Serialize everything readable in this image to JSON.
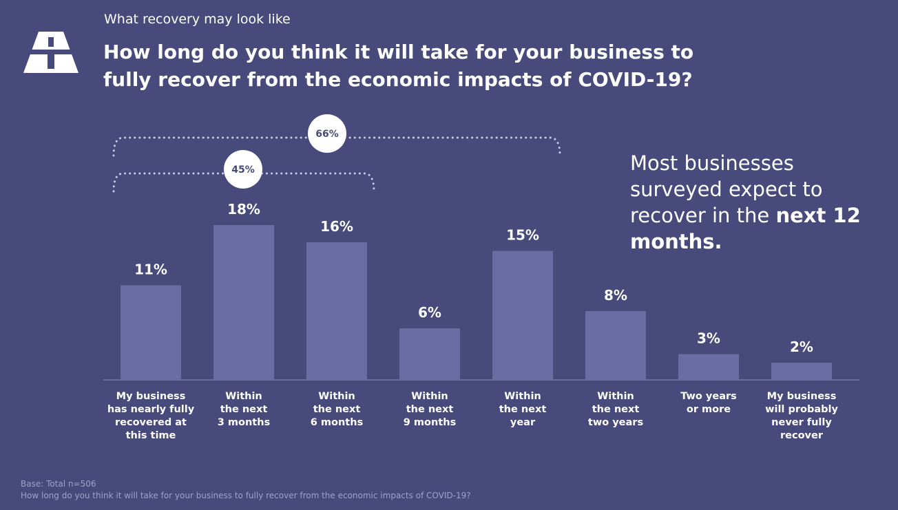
{
  "header": {
    "kicker": "What recovery may look like",
    "title": "How long do you think it will take for your business to fully recover from the economic impacts of COVID-19?",
    "logo_icon": "road-icon"
  },
  "callout": {
    "text_regular": "Most businesses surveyed expect to recover in the",
    "text_bold": "next 12 months."
  },
  "footnote": {
    "base": "Base: Total n=506",
    "question": "How long do you think it will take for your business to fully recover from the economic impacts of COVID-19?"
  },
  "colors": {
    "background": "#474a7a",
    "bar": "#6a6da3",
    "text": "#ffffff",
    "footnote": "#9fa2c9",
    "bracket": "#c9cbe8",
    "badge_text": "#474a7a"
  },
  "chart_data": {
    "type": "bar",
    "title": "",
    "xlabel": "",
    "ylabel": "",
    "ylim": [
      0,
      20
    ],
    "grid": false,
    "categories": [
      [
        "My business",
        "has nearly fully",
        "recovered at",
        "this time"
      ],
      [
        "Within",
        "the next",
        "3 months"
      ],
      [
        "Within",
        "the next",
        "6 months"
      ],
      [
        "Within",
        "the next",
        "9 months"
      ],
      [
        "Within",
        "the next",
        "year"
      ],
      [
        "Within",
        "the next",
        "two years"
      ],
      [
        "Two years",
        "or more"
      ],
      [
        "My business",
        "will probably",
        "never fully",
        "recover"
      ]
    ],
    "values": [
      11,
      18,
      16,
      6,
      15,
      8,
      3,
      2
    ],
    "data_labels": [
      "11%",
      "18%",
      "16%",
      "6%",
      "15%",
      "8%",
      "3%",
      "2%"
    ],
    "annotations": [
      {
        "label": "45%",
        "from_index": 0,
        "to_index": 2
      },
      {
        "label": "66%",
        "from_index": 0,
        "to_index": 4
      }
    ]
  }
}
